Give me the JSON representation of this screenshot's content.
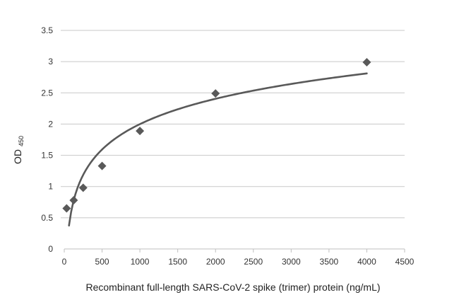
{
  "chart_data": {
    "type": "scatter",
    "xlabel": "Recombinant full-length SARS-CoV-2 spike (trimer) protein (ng/mL)",
    "ylabel": "OD",
    "ylabel_subscript": "450",
    "xlim": [
      0,
      4500
    ],
    "ylim": [
      0,
      3.5
    ],
    "x_ticks": [
      "0",
      "500",
      "1000",
      "1500",
      "2000",
      "2500",
      "3000",
      "3500",
      "4000",
      "4500"
    ],
    "y_ticks": [
      "0",
      "0.5",
      "1",
      "1.5",
      "2",
      "2.5",
      "3",
      "3.5"
    ],
    "grid": true,
    "series": [
      {
        "type": "scatter",
        "marker": "diamond",
        "color": "#595959",
        "x": [
          31.25,
          125,
          250,
          500,
          1000,
          2000,
          4000
        ],
        "y": [
          0.65,
          0.78,
          0.98,
          1.33,
          1.89,
          2.49,
          2.99
        ]
      },
      {
        "type": "line",
        "trend": "logarithmic",
        "color": "#595959",
        "x": [
          62.5,
          125,
          250,
          500,
          1000,
          2000,
          4000
        ],
        "y": [
          0.37,
          0.78,
          1.19,
          1.6,
          2.0,
          2.4,
          2.81
        ]
      }
    ]
  }
}
